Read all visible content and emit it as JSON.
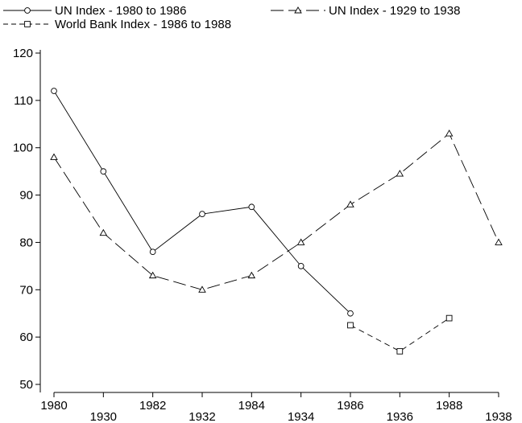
{
  "chart_data": {
    "type": "line",
    "title": "",
    "xlabel": "",
    "ylabel": "",
    "ylim": [
      47,
      123
    ],
    "y_ticks": [
      50,
      60,
      70,
      80,
      90,
      100,
      110,
      120
    ],
    "x_tick_labels": [
      "1980",
      "1930",
      "1982",
      "1932",
      "1984",
      "1934",
      "1986",
      "1936",
      "1988",
      "1938"
    ],
    "legend_position": "top",
    "grid": false,
    "series": [
      {
        "name": "UN Index - 1980 to 1986",
        "marker": "circle",
        "dash": "solid",
        "points": [
          {
            "x": "1980",
            "y": 112
          },
          {
            "x": "1930",
            "y": 95
          },
          {
            "x": "1982",
            "y": 78
          },
          {
            "x": "1932",
            "y": 86
          },
          {
            "x": "1984",
            "y": 87.5
          },
          {
            "x": "1934",
            "y": 75
          },
          {
            "x": "1986",
            "y": 65
          }
        ]
      },
      {
        "name": "UN Index - 1929 to 1938",
        "marker": "triangle",
        "dash": "long-dash",
        "points": [
          {
            "x": "1980",
            "y": 98
          },
          {
            "x": "1930",
            "y": 82
          },
          {
            "x": "1982",
            "y": 73
          },
          {
            "x": "1932",
            "y": 70
          },
          {
            "x": "1984",
            "y": 73
          },
          {
            "x": "1934",
            "y": 80
          },
          {
            "x": "1986",
            "y": 88
          },
          {
            "x": "1936",
            "y": 94.5
          },
          {
            "x": "1988",
            "y": 103
          },
          {
            "x": "1938",
            "y": 80
          }
        ]
      },
      {
        "name": "World Bank Index - 1986 to 1988",
        "marker": "square",
        "dash": "short-dash",
        "points": [
          {
            "x": "1986",
            "y": 62.5
          },
          {
            "x": "1936",
            "y": 57
          },
          {
            "x": "1988",
            "y": 64
          }
        ]
      }
    ]
  }
}
